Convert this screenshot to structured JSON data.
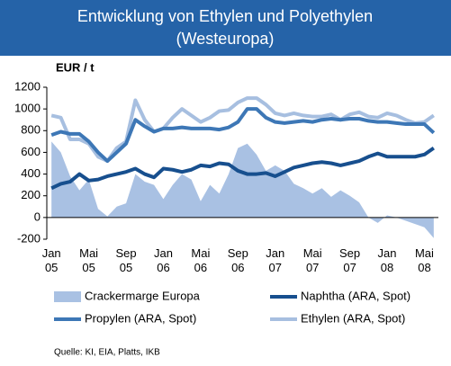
{
  "chart_data": {
    "type": "line",
    "title": "Entwicklung von Ethylen und Polyethylen",
    "subtitle": "(Westeuropa)",
    "y_label": "EUR / t",
    "source": "Quelle: KI, EIA, Platts, IKB",
    "categories": [
      "Jan 05",
      null,
      null,
      null,
      "Mai 05",
      null,
      null,
      null,
      "Sep 05",
      null,
      null,
      null,
      "Jan 06",
      null,
      null,
      null,
      "Mai 06",
      null,
      null,
      null,
      "Sep 06",
      null,
      null,
      null,
      "Jan 07",
      null,
      null,
      null,
      "Mai 07",
      null,
      null,
      null,
      "Sep 07",
      null,
      null,
      null,
      "Jan 08",
      null,
      null,
      null,
      "Mai 08",
      null
    ],
    "ylim": [
      -200,
      1200
    ],
    "yticks": [
      -200,
      0,
      200,
      400,
      600,
      800,
      1000,
      1200
    ],
    "series": [
      {
        "name": "Crackermarge Europa",
        "kind": "area",
        "color": "#a9c1e3",
        "values": [
          700,
          600,
          380,
          250,
          350,
          80,
          10,
          100,
          130,
          400,
          330,
          300,
          170,
          300,
          400,
          350,
          150,
          300,
          220,
          400,
          640,
          680,
          580,
          430,
          480,
          430,
          310,
          270,
          220,
          270,
          190,
          250,
          200,
          140,
          0,
          -50,
          20,
          0,
          -30,
          -60,
          -90,
          -190
        ]
      },
      {
        "name": "Naphtha (ARA, Spot)",
        "kind": "line",
        "color": "#174f8e",
        "values": [
          270,
          310,
          330,
          400,
          340,
          350,
          380,
          400,
          420,
          450,
          400,
          370,
          450,
          440,
          420,
          440,
          480,
          470,
          500,
          490,
          430,
          400,
          400,
          410,
          380,
          420,
          460,
          480,
          500,
          510,
          500,
          480,
          500,
          520,
          560,
          590,
          560,
          560,
          560,
          560,
          580,
          640
        ]
      },
      {
        "name": "Propylen (ARA, Spot)",
        "kind": "line",
        "color": "#3d77b6",
        "values": [
          760,
          790,
          770,
          770,
          700,
          600,
          520,
          600,
          680,
          900,
          840,
          790,
          820,
          820,
          830,
          820,
          820,
          820,
          810,
          830,
          880,
          1000,
          1000,
          920,
          880,
          870,
          880,
          890,
          880,
          900,
          910,
          900,
          910,
          910,
          890,
          880,
          880,
          870,
          860,
          860,
          860,
          780
        ]
      },
      {
        "name": "Ethylen (ARA, Spot)",
        "kind": "line",
        "color": "#a7bfe0",
        "values": [
          940,
          920,
          720,
          720,
          680,
          560,
          520,
          640,
          700,
          1080,
          900,
          790,
          820,
          920,
          1000,
          940,
          880,
          920,
          980,
          990,
          1060,
          1100,
          1100,
          1040,
          960,
          940,
          960,
          940,
          930,
          930,
          950,
          900,
          950,
          970,
          930,
          920,
          960,
          940,
          900,
          870,
          880,
          940
        ]
      }
    ]
  }
}
